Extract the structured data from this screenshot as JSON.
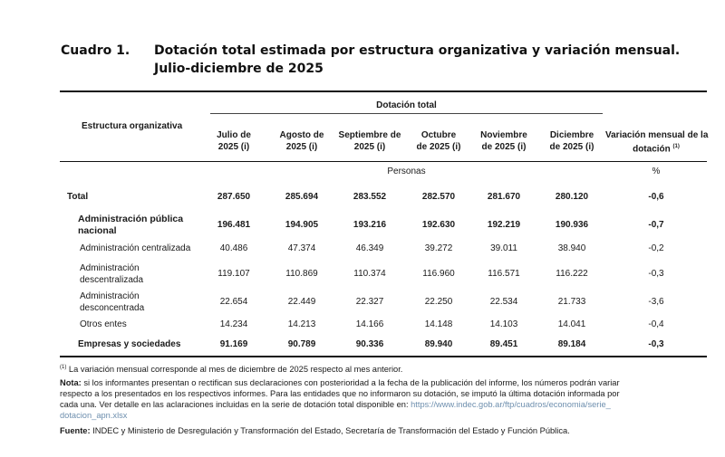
{
  "header": {
    "label": "Cuadro 1.",
    "title_line1": "Dotación total estimada por estructura organizativa y variación mensual.",
    "title_line2": "Julio-diciembre de 2025"
  },
  "table": {
    "group_header": "Dotación total",
    "row_header": "Estructura organizativa",
    "columns": [
      [
        "Julio de",
        "2025 (i)"
      ],
      [
        "Agosto de",
        "2025 (i)"
      ],
      [
        "Septiembre de",
        "2025 (i)"
      ],
      [
        "Octubre",
        "de 2025 (i)"
      ],
      [
        "Noviembre",
        "de 2025 (i)"
      ],
      [
        "Diciembre",
        "de 2025 (i)"
      ]
    ],
    "variation_header": [
      "Variación mensual de la",
      "dotación"
    ],
    "variation_sup": "(1)",
    "unit_persons": "Personas",
    "unit_percent": "%",
    "rows": [
      {
        "label": [
          "Total"
        ],
        "values": [
          "287.650",
          "285.694",
          "283.552",
          "282.570",
          "281.670",
          "280.120"
        ],
        "variation": "-0,6"
      },
      {
        "label": [
          "Administración pública",
          "nacional"
        ],
        "values": [
          "196.481",
          "194.905",
          "193.216",
          "192.630",
          "192.219",
          "190.936"
        ],
        "variation": "-0,7"
      },
      {
        "label": [
          "Administración centralizada"
        ],
        "values": [
          "40.486",
          "47.374",
          "46.349",
          "39.272",
          "39.011",
          "38.940"
        ],
        "variation": "-0,2"
      },
      {
        "label": [
          "Administración",
          "descentralizada"
        ],
        "values": [
          "119.107",
          "110.869",
          "110.374",
          "116.960",
          "116.571",
          "116.222"
        ],
        "variation": "-0,3"
      },
      {
        "label": [
          "Administración",
          "desconcentrada"
        ],
        "values": [
          "22.654",
          "22.449",
          "22.327",
          "22.250",
          "22.534",
          "21.733"
        ],
        "variation": "-3,6"
      },
      {
        "label": [
          "Otros entes"
        ],
        "values": [
          "14.234",
          "14.213",
          "14.166",
          "14.148",
          "14.103",
          "14.041"
        ],
        "variation": "-0,4"
      },
      {
        "label": [
          "Empresas y sociedades"
        ],
        "values": [
          "91.169",
          "90.789",
          "90.336",
          "89.940",
          "89.451",
          "89.184"
        ],
        "variation": "-0,3"
      }
    ]
  },
  "footnotes": {
    "fn1_sup": "(1)",
    "fn1_text": " La variación mensual corresponde al mes de diciembre de 2025 respecto al mes anterior.",
    "note_label": "Nota:",
    "note_line1": " si los informantes presentan o rectifican sus declaraciones con posterioridad a la fecha de la publicación del informe, los números podrán variar",
    "note_line2": "respecto a los presentados en los respectivos informes. Para las entidades que no informaron su dotación, se imputó la última dotación informada por",
    "note_line3": "cada una. Ver detalle en las aclaraciones incluidas en la serie de dotación total disponible en: ",
    "note_link1": "https://www.indec.gob.ar/ftp/cuadros/economia/serie_",
    "note_link2": "dotacion_apn.xlsx",
    "source_label": "Fuente:",
    "source_text": " INDEC y Ministerio de Desregulación y Transformación del Estado, Secretaría de Transformación del Estado y Función Pública."
  }
}
